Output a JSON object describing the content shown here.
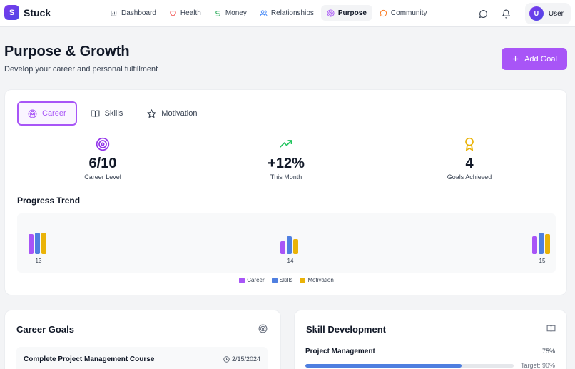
{
  "app": {
    "logo_letter": "S",
    "name": "Stuck"
  },
  "nav": [
    {
      "label": "Dashboard",
      "icon": "bar-chart-icon",
      "active": false
    },
    {
      "label": "Health",
      "icon": "heart-icon",
      "active": false
    },
    {
      "label": "Money",
      "icon": "dollar-icon",
      "active": false
    },
    {
      "label": "Relationships",
      "icon": "users-icon",
      "active": false
    },
    {
      "label": "Purpose",
      "icon": "target-icon",
      "active": true
    },
    {
      "label": "Community",
      "icon": "chat-icon",
      "active": false
    }
  ],
  "user": {
    "initial": "U",
    "name": "User"
  },
  "header": {
    "title": "Purpose & Growth",
    "subtitle": "Develop your career and personal fulfillment",
    "add_button": "Add Goal"
  },
  "tabs": [
    {
      "label": "Career",
      "icon": "target-icon",
      "active": true
    },
    {
      "label": "Skills",
      "icon": "book-icon",
      "active": false
    },
    {
      "label": "Motivation",
      "icon": "star-icon",
      "active": false
    }
  ],
  "stats": [
    {
      "value": "6/10",
      "label": "Career Level",
      "icon": "target-icon",
      "color": "#9333ea"
    },
    {
      "value": "+12%",
      "label": "This Month",
      "icon": "trending-up-icon",
      "color": "#22c55e"
    },
    {
      "value": "4",
      "label": "Goals Achieved",
      "icon": "award-icon",
      "color": "#eab308"
    }
  ],
  "trend": {
    "title": "Progress Trend"
  },
  "chart_data": {
    "type": "bar",
    "categories": [
      "13",
      "14",
      "15"
    ],
    "series": [
      {
        "name": "Career",
        "color": "#a855f7",
        "values": [
          6,
          4,
          5.5
        ]
      },
      {
        "name": "Skills",
        "color": "#4f7fe0",
        "values": [
          6.5,
          5.5,
          6.5
        ]
      },
      {
        "name": "Motivation",
        "color": "#eab308",
        "values": [
          6.5,
          4.5,
          6
        ]
      }
    ]
  },
  "career_goals": {
    "title": "Career Goals",
    "items": [
      {
        "name": "Complete Project Management Course",
        "date": "2/15/2024"
      }
    ]
  },
  "skill_development": {
    "title": "Skill Development",
    "items": [
      {
        "name": "Project Management",
        "percent": "75%",
        "progress": 0.75,
        "target": "Target: 90%"
      }
    ]
  }
}
